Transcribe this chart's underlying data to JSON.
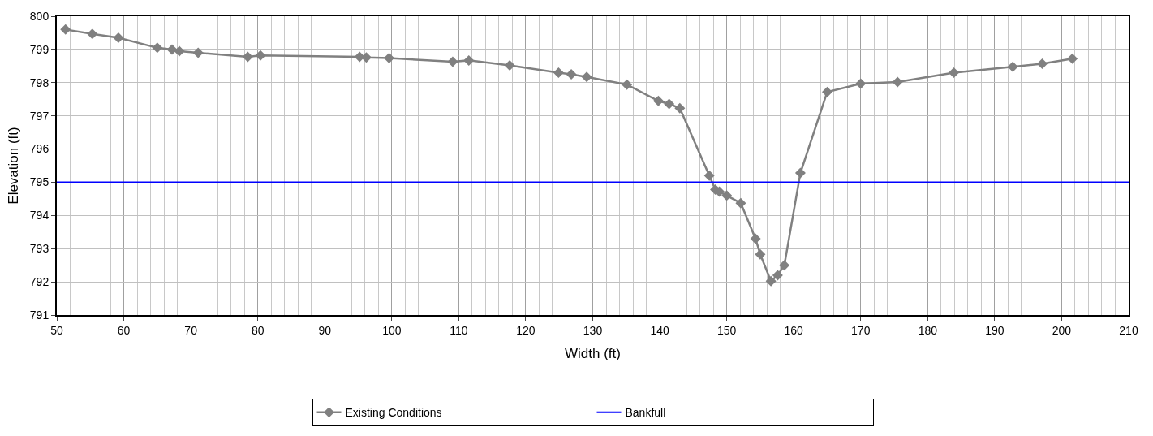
{
  "chart_data": {
    "type": "line",
    "xlabel": "Width (ft)",
    "ylabel": "Elevation (ft)",
    "xlim": [
      50,
      210
    ],
    "xticks": [
      50,
      60,
      70,
      80,
      90,
      100,
      110,
      120,
      130,
      140,
      150,
      160,
      170,
      180,
      190,
      200,
      210
    ],
    "ylim": [
      791,
      800
    ],
    "yticks": [
      791,
      792,
      793,
      794,
      795,
      796,
      797,
      798,
      799,
      800
    ],
    "grid": true,
    "legend": "bottom",
    "line_style": "solid",
    "series": [
      {
        "name": "Existing Conditions",
        "color": "#808080",
        "marker": "diamond",
        "x": [
          51.3,
          55.3,
          59.2,
          65,
          67.2,
          68.3,
          71.1,
          78.5,
          80.4,
          95.2,
          96.2,
          99.6,
          109.1,
          111.5,
          117.6,
          124.9,
          126.8,
          129.1,
          135.1,
          139.8,
          141.4,
          143.0,
          147.4,
          148.3,
          148.9,
          150.0,
          152.1,
          154.3,
          155.0,
          156.6,
          157.6,
          158.6,
          161.0,
          165.0,
          170.0,
          175.5,
          183.9,
          192.7,
          197.1,
          201.6
        ],
        "values": [
          799.6,
          799.47,
          799.35,
          799.05,
          799.0,
          798.95,
          798.9,
          798.78,
          798.82,
          798.78,
          798.76,
          798.74,
          798.63,
          798.67,
          798.52,
          798.3,
          798.25,
          798.17,
          797.94,
          797.45,
          797.36,
          797.23,
          795.2,
          794.78,
          794.72,
          794.6,
          794.37,
          793.3,
          792.83,
          792.02,
          792.2,
          792.5,
          795.28,
          797.72,
          797.97,
          798.02,
          798.3,
          798.48,
          798.57,
          798.72
        ]
      },
      {
        "name": "Bankfull",
        "color": "#0000ff",
        "marker": "none",
        "x": [
          50,
          210
        ],
        "values": [
          795,
          795
        ]
      }
    ]
  }
}
